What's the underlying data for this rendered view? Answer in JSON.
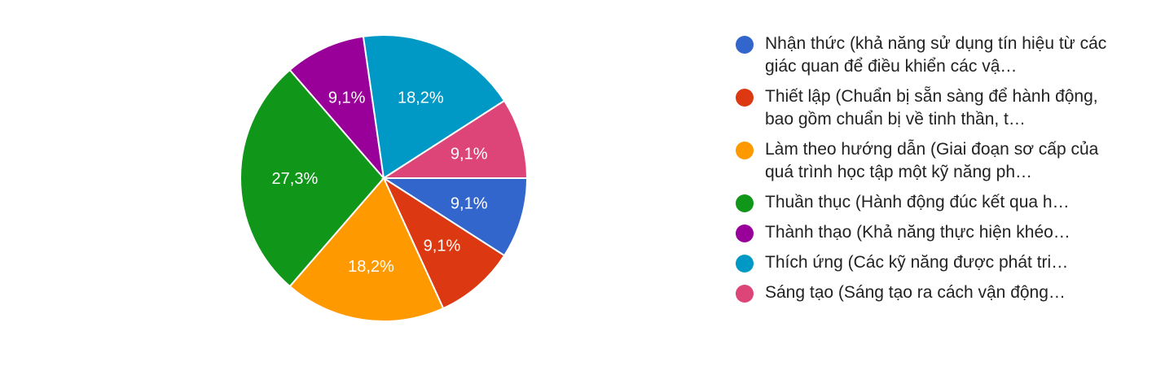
{
  "chart_data": {
    "type": "pie",
    "slices": [
      {
        "label": "Nhận thức (khả năng sử dụng tín hiệu từ các giác quan để điều khiển các vậ…",
        "value": 9.1,
        "display": "9,1%",
        "color": "#3366cc"
      },
      {
        "label": "Thiết lập (Chuẩn bị sẵn sàng để hành động, bao gồm chuẩn bị về tinh thần, t…",
        "value": 9.1,
        "display": "9,1%",
        "color": "#dc3912"
      },
      {
        "label": "Làm theo hướng dẫn (Giai đoạn sơ cấp của quá trình học tập một kỹ năng ph…",
        "value": 18.2,
        "display": "18,2%",
        "color": "#ff9900"
      },
      {
        "label": "Thuần thục (Hành động đúc kết qua h…",
        "value": 27.3,
        "display": "27,3%",
        "color": "#109618"
      },
      {
        "label": "Thành thạo (Khả năng thực hiện khéo…",
        "value": 9.1,
        "display": "9,1%",
        "color": "#990099"
      },
      {
        "label": "Thích ứng (Các kỹ năng được phát tri…",
        "value": 18.2,
        "display": "18,2%",
        "color": "#0099c6"
      },
      {
        "label": "Sáng tạo (Sáng tạo ra cách vận động…",
        "value": 9.1,
        "display": "9,1%",
        "color": "#dd4477"
      }
    ],
    "start": "3 o'clock, clockwise",
    "legend_position": "right"
  }
}
